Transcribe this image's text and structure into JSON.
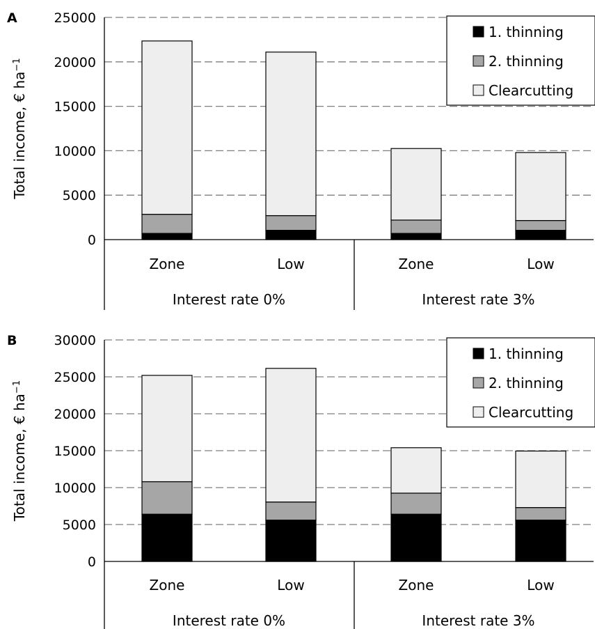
{
  "colors": {
    "1. thinning": "#000000",
    "2. thinning": "#a6a6a6",
    "Clearcutting": "#eeeeee",
    "grid": "#7f7f7f",
    "outline": "#000000"
  },
  "chart_data": [
    {
      "panel": "A",
      "type": "bar",
      "stacked": true,
      "ylabel": "Total income, € ha",
      "ylabel_sup": "−1",
      "ylim": [
        0,
        25000
      ],
      "yticks": [
        0,
        5000,
        10000,
        15000,
        20000,
        25000
      ],
      "grid": true,
      "legend": "top-right",
      "categories": [
        "Zone",
        "Low",
        "Zone",
        "Low"
      ],
      "groups": [
        {
          "label": "Interest rate 0%",
          "span": [
            0,
            1
          ]
        },
        {
          "label": "Interest rate 3%",
          "span": [
            2,
            3
          ]
        }
      ],
      "series": [
        {
          "name": "1. thinning",
          "values": [
            700,
            1050,
            700,
            1050
          ]
        },
        {
          "name": "2. thinning",
          "values": [
            2150,
            1650,
            1500,
            1100
          ]
        },
        {
          "name": "Clearcutting",
          "values": [
            19500,
            18400,
            8050,
            7650
          ]
        }
      ]
    },
    {
      "panel": "B",
      "type": "bar",
      "stacked": true,
      "ylabel": "Total income, € ha",
      "ylabel_sup": "−1",
      "ylim": [
        0,
        30000
      ],
      "yticks": [
        0,
        5000,
        10000,
        15000,
        20000,
        25000,
        30000
      ],
      "grid": true,
      "legend": "top-right",
      "categories": [
        "Zone",
        "Low",
        "Zone",
        "Low"
      ],
      "groups": [
        {
          "label": "Interest rate 0%",
          "span": [
            0,
            1
          ]
        },
        {
          "label": "Interest rate 3%",
          "span": [
            2,
            3
          ]
        }
      ],
      "series": [
        {
          "name": "1. thinning",
          "values": [
            6400,
            5600,
            6400,
            5600
          ]
        },
        {
          "name": "2. thinning",
          "values": [
            4400,
            2450,
            2850,
            1700
          ]
        },
        {
          "name": "Clearcutting",
          "values": [
            14400,
            18100,
            6150,
            7650
          ]
        }
      ]
    }
  ]
}
